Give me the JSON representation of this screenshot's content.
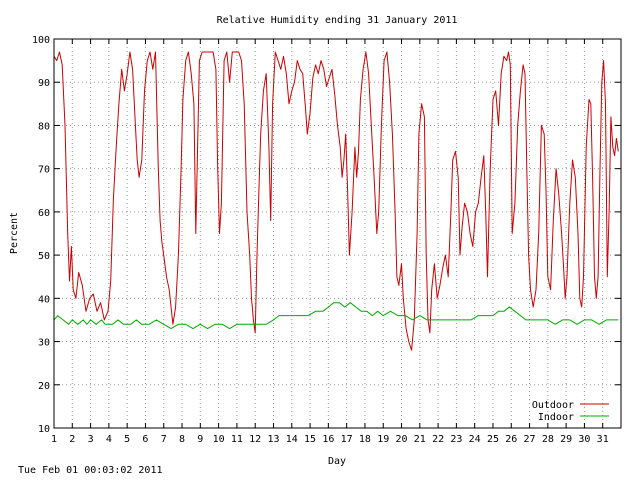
{
  "footer_timestamp": "Tue Feb 01 00:03:02 2011",
  "chart_data": {
    "type": "line",
    "title": "Relative Humidity ending 31 January 2011",
    "xlabel": "Day",
    "ylabel": "Percent",
    "xlim": [
      1,
      32
    ],
    "ylim": [
      10,
      100
    ],
    "x_ticks": [
      "1",
      "2",
      "3",
      "4",
      "5",
      "6",
      "7",
      "8",
      "9",
      "10",
      "11",
      "12",
      "13",
      "14",
      "15",
      "16",
      "17",
      "18",
      "19",
      "20",
      "21",
      "22",
      "23",
      "24",
      "25",
      "26",
      "27",
      "28",
      "29",
      "30",
      "31"
    ],
    "y_ticks": [
      "10",
      "20",
      "30",
      "40",
      "50",
      "60",
      "70",
      "80",
      "90",
      "100"
    ],
    "grid": true,
    "legend": "bottom-right",
    "series": [
      {
        "name": "Outdoor",
        "color": "#cc0000",
        "points": [
          [
            1.0,
            96
          ],
          [
            1.15,
            95
          ],
          [
            1.3,
            97
          ],
          [
            1.45,
            94
          ],
          [
            1.6,
            80
          ],
          [
            1.75,
            55
          ],
          [
            1.85,
            44
          ],
          [
            1.95,
            52
          ],
          [
            2.05,
            42
          ],
          [
            2.2,
            40
          ],
          [
            2.35,
            46
          ],
          [
            2.55,
            43
          ],
          [
            2.75,
            37
          ],
          [
            2.95,
            40
          ],
          [
            3.15,
            41
          ],
          [
            3.35,
            37
          ],
          [
            3.55,
            39
          ],
          [
            3.75,
            35
          ],
          [
            3.95,
            37
          ],
          [
            4.1,
            44
          ],
          [
            4.25,
            63
          ],
          [
            4.4,
            75
          ],
          [
            4.55,
            85
          ],
          [
            4.7,
            93
          ],
          [
            4.85,
            88
          ],
          [
            5.0,
            92
          ],
          [
            5.15,
            97
          ],
          [
            5.3,
            93
          ],
          [
            5.45,
            80
          ],
          [
            5.55,
            72
          ],
          [
            5.65,
            68
          ],
          [
            5.8,
            72
          ],
          [
            5.95,
            88
          ],
          [
            6.1,
            95
          ],
          [
            6.25,
            97
          ],
          [
            6.4,
            93
          ],
          [
            6.55,
            97
          ],
          [
            6.7,
            70
          ],
          [
            6.8,
            58
          ],
          [
            6.9,
            53
          ],
          [
            7.0,
            50
          ],
          [
            7.15,
            45
          ],
          [
            7.3,
            42
          ],
          [
            7.5,
            34
          ],
          [
            7.65,
            38
          ],
          [
            7.8,
            50
          ],
          [
            7.95,
            70
          ],
          [
            8.05,
            86
          ],
          [
            8.2,
            95
          ],
          [
            8.35,
            97
          ],
          [
            8.5,
            92
          ],
          [
            8.65,
            85
          ],
          [
            8.75,
            55
          ],
          [
            8.85,
            75
          ],
          [
            8.95,
            95
          ],
          [
            9.1,
            97
          ],
          [
            9.3,
            97
          ],
          [
            9.5,
            97
          ],
          [
            9.7,
            97
          ],
          [
            9.85,
            93
          ],
          [
            9.95,
            70
          ],
          [
            10.05,
            55
          ],
          [
            10.15,
            62
          ],
          [
            10.3,
            95
          ],
          [
            10.45,
            97
          ],
          [
            10.6,
            90
          ],
          [
            10.75,
            97
          ],
          [
            10.9,
            97
          ],
          [
            11.1,
            97
          ],
          [
            11.25,
            95
          ],
          [
            11.4,
            85
          ],
          [
            11.55,
            60
          ],
          [
            11.7,
            50
          ],
          [
            11.8,
            40
          ],
          [
            11.9,
            35
          ],
          [
            12.0,
            32
          ],
          [
            12.1,
            50
          ],
          [
            12.2,
            65
          ],
          [
            12.3,
            78
          ],
          [
            12.45,
            88
          ],
          [
            12.6,
            92
          ],
          [
            12.75,
            75
          ],
          [
            12.85,
            58
          ],
          [
            12.95,
            85
          ],
          [
            13.1,
            97
          ],
          [
            13.25,
            95
          ],
          [
            13.4,
            93
          ],
          [
            13.55,
            96
          ],
          [
            13.7,
            92
          ],
          [
            13.85,
            85
          ],
          [
            14.0,
            88
          ],
          [
            14.15,
            90
          ],
          [
            14.3,
            95
          ],
          [
            14.45,
            93
          ],
          [
            14.6,
            92
          ],
          [
            14.75,
            84
          ],
          [
            14.85,
            78
          ],
          [
            15.0,
            83
          ],
          [
            15.15,
            91
          ],
          [
            15.3,
            94
          ],
          [
            15.45,
            92
          ],
          [
            15.6,
            95
          ],
          [
            15.75,
            93
          ],
          [
            15.9,
            89
          ],
          [
            16.05,
            91
          ],
          [
            16.2,
            93
          ],
          [
            16.35,
            87
          ],
          [
            16.5,
            80
          ],
          [
            16.65,
            75
          ],
          [
            16.75,
            68
          ],
          [
            16.85,
            72
          ],
          [
            16.95,
            78
          ],
          [
            17.05,
            65
          ],
          [
            17.15,
            50
          ],
          [
            17.3,
            60
          ],
          [
            17.45,
            75
          ],
          [
            17.55,
            68
          ],
          [
            17.65,
            74
          ],
          [
            17.75,
            86
          ],
          [
            17.9,
            93
          ],
          [
            18.05,
            97
          ],
          [
            18.2,
            92
          ],
          [
            18.35,
            80
          ],
          [
            18.5,
            68
          ],
          [
            18.65,
            55
          ],
          [
            18.75,
            60
          ],
          [
            18.9,
            80
          ],
          [
            19.05,
            95
          ],
          [
            19.2,
            97
          ],
          [
            19.35,
            90
          ],
          [
            19.5,
            78
          ],
          [
            19.65,
            60
          ],
          [
            19.75,
            45
          ],
          [
            19.85,
            43
          ],
          [
            20.0,
            48
          ],
          [
            20.1,
            40
          ],
          [
            20.25,
            33
          ],
          [
            20.4,
            30
          ],
          [
            20.55,
            28
          ],
          [
            20.7,
            35
          ],
          [
            20.85,
            55
          ],
          [
            20.95,
            78
          ],
          [
            21.1,
            85
          ],
          [
            21.25,
            82
          ],
          [
            21.35,
            50
          ],
          [
            21.45,
            35
          ],
          [
            21.55,
            32
          ],
          [
            21.65,
            42
          ],
          [
            21.8,
            48
          ],
          [
            21.95,
            40
          ],
          [
            22.1,
            43
          ],
          [
            22.25,
            47
          ],
          [
            22.4,
            50
          ],
          [
            22.55,
            45
          ],
          [
            22.7,
            60
          ],
          [
            22.8,
            72
          ],
          [
            22.95,
            74
          ],
          [
            23.1,
            68
          ],
          [
            23.2,
            50
          ],
          [
            23.3,
            56
          ],
          [
            23.45,
            62
          ],
          [
            23.6,
            60
          ],
          [
            23.75,
            55
          ],
          [
            23.9,
            52
          ],
          [
            24.05,
            60
          ],
          [
            24.2,
            62
          ],
          [
            24.35,
            68
          ],
          [
            24.5,
            73
          ],
          [
            24.6,
            60
          ],
          [
            24.7,
            45
          ],
          [
            24.85,
            70
          ],
          [
            25.0,
            86
          ],
          [
            25.15,
            88
          ],
          [
            25.3,
            80
          ],
          [
            25.45,
            92
          ],
          [
            25.6,
            96
          ],
          [
            25.75,
            95
          ],
          [
            25.85,
            97
          ],
          [
            25.95,
            94
          ],
          [
            26.05,
            55
          ],
          [
            26.2,
            62
          ],
          [
            26.35,
            80
          ],
          [
            26.5,
            88
          ],
          [
            26.65,
            94
          ],
          [
            26.75,
            92
          ],
          [
            26.85,
            70
          ],
          [
            26.95,
            50
          ],
          [
            27.05,
            42
          ],
          [
            27.2,
            38
          ],
          [
            27.35,
            42
          ],
          [
            27.5,
            55
          ],
          [
            27.65,
            80
          ],
          [
            27.8,
            78
          ],
          [
            27.9,
            65
          ],
          [
            28.0,
            45
          ],
          [
            28.15,
            42
          ],
          [
            28.3,
            58
          ],
          [
            28.45,
            70
          ],
          [
            28.6,
            64
          ],
          [
            28.75,
            55
          ],
          [
            28.85,
            48
          ],
          [
            28.95,
            40
          ],
          [
            29.05,
            45
          ],
          [
            29.2,
            62
          ],
          [
            29.35,
            72
          ],
          [
            29.5,
            68
          ],
          [
            29.65,
            55
          ],
          [
            29.75,
            40
          ],
          [
            29.85,
            38
          ],
          [
            29.95,
            45
          ],
          [
            30.1,
            75
          ],
          [
            30.25,
            86
          ],
          [
            30.35,
            85
          ],
          [
            30.45,
            68
          ],
          [
            30.55,
            45
          ],
          [
            30.65,
            40
          ],
          [
            30.75,
            45
          ],
          [
            30.85,
            70
          ],
          [
            30.95,
            90
          ],
          [
            31.05,
            95
          ],
          [
            31.15,
            85
          ],
          [
            31.25,
            45
          ],
          [
            31.35,
            60
          ],
          [
            31.45,
            82
          ],
          [
            31.55,
            75
          ],
          [
            31.65,
            73
          ],
          [
            31.75,
            77
          ],
          [
            31.85,
            74
          ]
        ]
      },
      {
        "name": "Indoor",
        "color": "#00aa00",
        "points": [
          [
            1.0,
            35
          ],
          [
            1.2,
            36
          ],
          [
            1.5,
            35
          ],
          [
            1.8,
            34
          ],
          [
            2.0,
            35
          ],
          [
            2.3,
            34
          ],
          [
            2.6,
            35
          ],
          [
            2.8,
            34
          ],
          [
            3.0,
            35
          ],
          [
            3.3,
            34
          ],
          [
            3.6,
            35
          ],
          [
            3.8,
            34
          ],
          [
            4.2,
            34
          ],
          [
            4.5,
            35
          ],
          [
            4.8,
            34
          ],
          [
            5.2,
            34
          ],
          [
            5.5,
            35
          ],
          [
            5.8,
            34
          ],
          [
            6.2,
            34
          ],
          [
            6.6,
            35
          ],
          [
            7.0,
            34
          ],
          [
            7.4,
            33
          ],
          [
            7.8,
            34
          ],
          [
            8.2,
            34
          ],
          [
            8.6,
            33
          ],
          [
            9.0,
            34
          ],
          [
            9.4,
            33
          ],
          [
            9.8,
            34
          ],
          [
            10.2,
            34
          ],
          [
            10.6,
            33
          ],
          [
            11.0,
            34
          ],
          [
            11.4,
            34
          ],
          [
            11.8,
            34
          ],
          [
            12.2,
            34
          ],
          [
            12.6,
            34
          ],
          [
            13.0,
            35
          ],
          [
            13.3,
            36
          ],
          [
            13.7,
            36
          ],
          [
            14.1,
            36
          ],
          [
            14.5,
            36
          ],
          [
            14.9,
            36
          ],
          [
            15.3,
            37
          ],
          [
            15.7,
            37
          ],
          [
            16.0,
            38
          ],
          [
            16.3,
            39
          ],
          [
            16.6,
            39
          ],
          [
            16.9,
            38
          ],
          [
            17.2,
            39
          ],
          [
            17.5,
            38
          ],
          [
            17.8,
            37
          ],
          [
            18.1,
            37
          ],
          [
            18.4,
            36
          ],
          [
            18.7,
            37
          ],
          [
            19.0,
            36
          ],
          [
            19.4,
            37
          ],
          [
            19.8,
            36
          ],
          [
            20.2,
            36
          ],
          [
            20.6,
            35
          ],
          [
            21.0,
            36
          ],
          [
            21.4,
            35
          ],
          [
            21.8,
            35
          ],
          [
            22.2,
            35
          ],
          [
            22.6,
            35
          ],
          [
            23.0,
            35
          ],
          [
            23.4,
            35
          ],
          [
            23.8,
            35
          ],
          [
            24.2,
            36
          ],
          [
            24.6,
            36
          ],
          [
            25.0,
            36
          ],
          [
            25.3,
            37
          ],
          [
            25.6,
            37
          ],
          [
            25.9,
            38
          ],
          [
            26.2,
            37
          ],
          [
            26.5,
            36
          ],
          [
            26.8,
            35
          ],
          [
            27.2,
            35
          ],
          [
            27.6,
            35
          ],
          [
            28.0,
            35
          ],
          [
            28.4,
            34
          ],
          [
            28.8,
            35
          ],
          [
            29.2,
            35
          ],
          [
            29.6,
            34
          ],
          [
            30.0,
            35
          ],
          [
            30.4,
            35
          ],
          [
            30.8,
            34
          ],
          [
            31.2,
            35
          ],
          [
            31.6,
            35
          ],
          [
            31.85,
            35
          ]
        ]
      }
    ]
  }
}
